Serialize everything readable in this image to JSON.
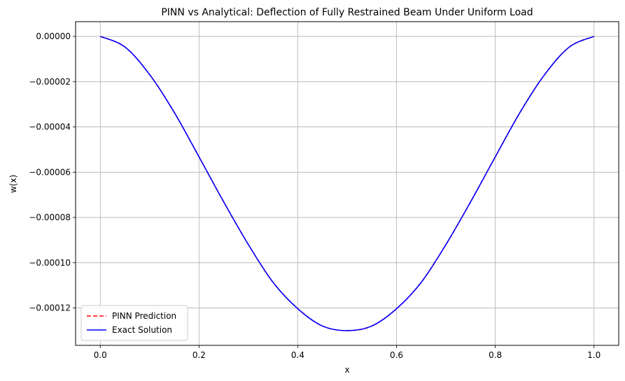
{
  "chart_data": {
    "type": "line",
    "title": "PINN vs Analytical: Deflection of Fully Restrained Beam Under Uniform Load",
    "xlabel": "x",
    "ylabel": "w(x)",
    "xlim": [
      -0.05,
      1.05
    ],
    "ylim": [
      -0.0001365,
      6.5e-06
    ],
    "grid": true,
    "legend_position": "lower-left",
    "x_ticks": [
      0.0,
      0.2,
      0.4,
      0.6,
      0.8,
      1.0
    ],
    "x_tick_labels": [
      "0.0",
      "0.2",
      "0.4",
      "0.6",
      "0.8",
      "1.0"
    ],
    "y_ticks": [
      0.0,
      -2e-05,
      -4e-05,
      -6e-05,
      -8e-05,
      -0.0001,
      -0.00012
    ],
    "y_tick_labels": [
      "0.00000",
      "−0.00002",
      "−0.00004",
      "−0.00006",
      "−0.00008",
      "−0.00010",
      "−0.00012"
    ],
    "x": [
      0.0,
      0.05,
      0.1,
      0.15,
      0.2,
      0.25,
      0.3,
      0.35,
      0.4,
      0.45,
      0.5,
      0.55,
      0.6,
      0.65,
      0.7,
      0.75,
      0.8,
      0.85,
      0.9,
      0.95,
      1.0
    ],
    "series": [
      {
        "name": "PINN Prediction",
        "color": "#ff0000",
        "style": "dashed",
        "values": [
          0.0,
          -4.7e-06,
          -1.688e-05,
          -3.364e-05,
          -5.324e-05,
          -7.313e-05,
          -9.2e-05,
          -0.00010867,
          -0.00012032,
          -0.00012795,
          -0.00013,
          -0.00012795,
          -0.00012032,
          -0.00010867,
          -9.2e-05,
          -7.313e-05,
          -5.324e-05,
          -3.364e-05,
          -1.688e-05,
          -4.7e-06,
          0.0
        ]
      },
      {
        "name": "Exact Solution",
        "color": "#0000ff",
        "style": "solid",
        "values": [
          0.0,
          -4.7e-06,
          -1.688e-05,
          -3.364e-05,
          -5.324e-05,
          -7.313e-05,
          -9.2e-05,
          -0.00010867,
          -0.00012032,
          -0.00012795,
          -0.00013,
          -0.00012795,
          -0.00012032,
          -0.00010867,
          -9.2e-05,
          -7.313e-05,
          -5.324e-05,
          -3.364e-05,
          -1.688e-05,
          -4.7e-06,
          0.0
        ]
      }
    ]
  }
}
